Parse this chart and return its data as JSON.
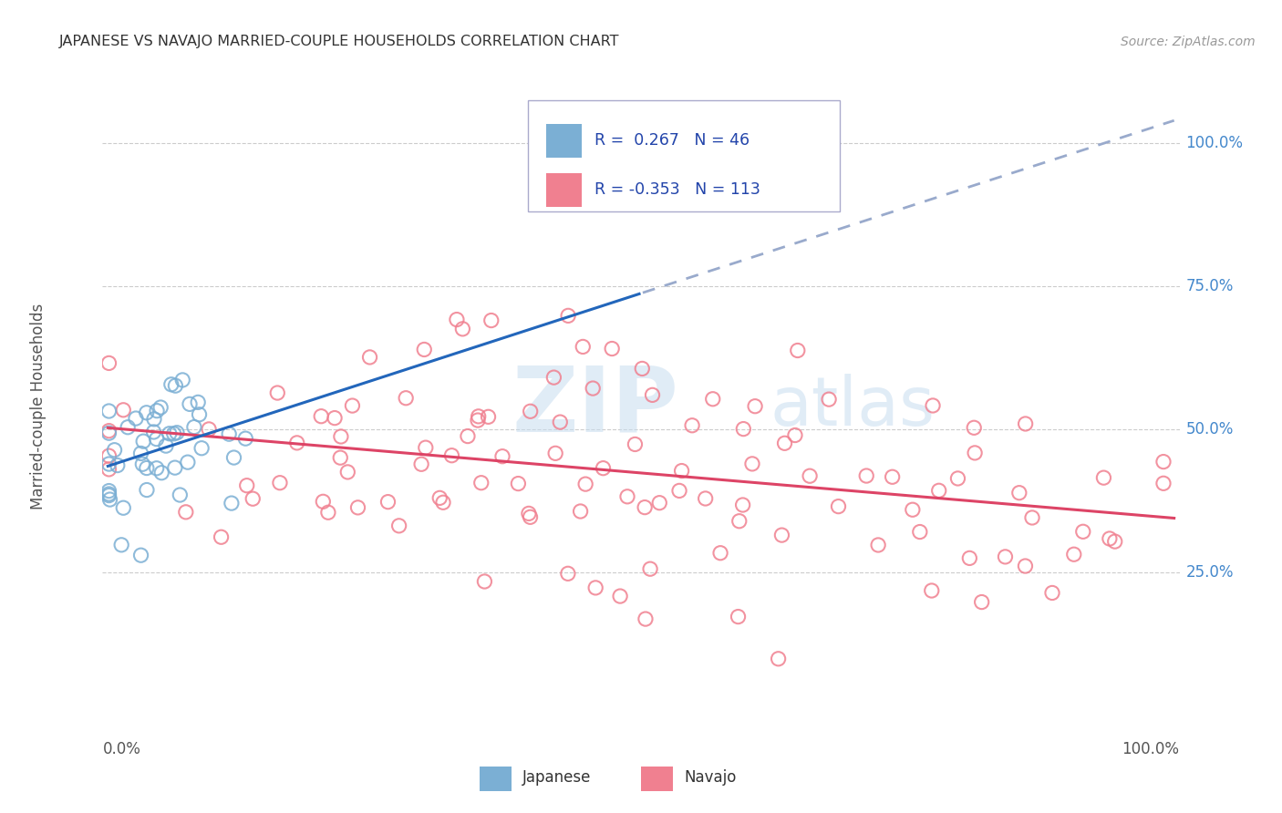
{
  "title": "JAPANESE VS NAVAJO MARRIED-COUPLE HOUSEHOLDS CORRELATION CHART",
  "source": "Source: ZipAtlas.com",
  "ylabel": "Married-couple Households",
  "japanese_R": 0.267,
  "japanese_N": 46,
  "navajo_R": -0.353,
  "navajo_N": 113,
  "japanese_color": "#7bafd4",
  "navajo_color": "#f08090",
  "japanese_trend_color": "#2266bb",
  "navajo_trend_color": "#dd4466",
  "dashed_trend_color": "#99aacc",
  "watermark_text": "ZIPatlas",
  "watermark_color": "#c8ddf0",
  "y_ticks": [
    0.25,
    0.5,
    0.75,
    1.0
  ],
  "y_tick_labels": [
    "25.0%",
    "50.0%",
    "75.0%",
    "100.0%"
  ],
  "background_color": "#ffffff",
  "grid_color": "#cccccc",
  "grid_style": "--",
  "title_color": "#333333",
  "source_color": "#999999",
  "tick_label_color": "#4488cc",
  "axis_label_color": "#555555",
  "legend_edge_color": "#aaaacc",
  "legend_bg": "#ffffff"
}
